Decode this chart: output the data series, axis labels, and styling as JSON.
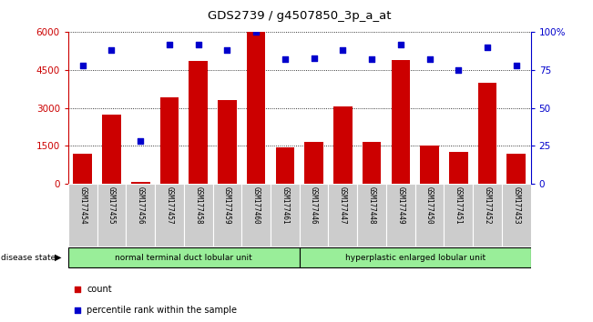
{
  "title": "GDS2739 / g4507850_3p_a_at",
  "samples": [
    "GSM177454",
    "GSM177455",
    "GSM177456",
    "GSM177457",
    "GSM177458",
    "GSM177459",
    "GSM177460",
    "GSM177461",
    "GSM177446",
    "GSM177447",
    "GSM177448",
    "GSM177449",
    "GSM177450",
    "GSM177451",
    "GSM177452",
    "GSM177453"
  ],
  "counts": [
    1200,
    2750,
    80,
    3400,
    4850,
    3300,
    6000,
    1450,
    1650,
    3050,
    1650,
    4900,
    1500,
    1250,
    4000,
    1200
  ],
  "percentiles": [
    78,
    88,
    28,
    92,
    92,
    88,
    100,
    82,
    83,
    88,
    82,
    92,
    82,
    75,
    90,
    78
  ],
  "group1_label": "normal terminal duct lobular unit",
  "group2_label": "hyperplastic enlarged lobular unit",
  "group1_count": 8,
  "group2_count": 8,
  "bar_color": "#cc0000",
  "dot_color": "#0000cc",
  "ylim_left": [
    0,
    6000
  ],
  "ylim_right": [
    0,
    100
  ],
  "yticks_left": [
    0,
    1500,
    3000,
    4500,
    6000
  ],
  "ytick_labels_left": [
    "0",
    "1500",
    "3000",
    "4500",
    "6000"
  ],
  "yticks_right": [
    0,
    25,
    50,
    75,
    100
  ],
  "ytick_labels_right": [
    "0",
    "25",
    "50",
    "75",
    "100%"
  ],
  "legend_count_label": "count",
  "legend_percentile_label": "percentile rank within the sample",
  "disease_state_label": "disease state",
  "background_color": "#ffffff",
  "label_bg_color": "#cccccc",
  "group_bg_color": "#99ee99"
}
